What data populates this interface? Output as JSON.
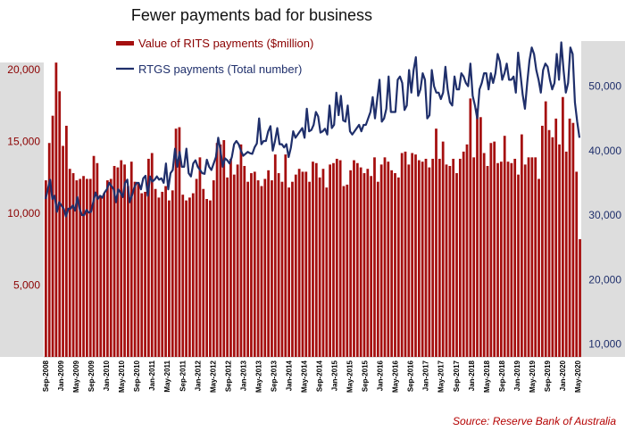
{
  "chart_data": {
    "type": "bar+line",
    "title": "Fewer payments bad for business",
    "source": "Source: Reserve Bank of Australia",
    "colors": {
      "bars": "#a50f0f",
      "line": "#1f2f6b",
      "axis_panel": "#dddddd"
    },
    "legend": {
      "placement": "top-center"
    },
    "grid": false,
    "series": [
      {
        "name": "Value of RITS payments ($million)",
        "type": "bar",
        "axis": "left",
        "ylim": [
          0,
          22000
        ],
        "yticks": [
          "5,000",
          "10,000",
          "15,000",
          "20,000"
        ],
        "ytick_values": [
          5000,
          10000,
          15000,
          20000
        ],
        "values": [
          12300,
          14900,
          16800,
          20500,
          18500,
          14700,
          16100,
          13100,
          12800,
          12300,
          12400,
          12600,
          12400,
          12400,
          14000,
          13500,
          11200,
          11400,
          12300,
          12400,
          13300,
          13200,
          13700,
          13400,
          11900,
          13600,
          12200,
          12100,
          11400,
          11500,
          13800,
          14200,
          11700,
          11100,
          11500,
          11900,
          10900,
          11600,
          15900,
          16000,
          11300,
          10900,
          11100,
          11400,
          12400,
          13900,
          11700,
          11000,
          10900,
          12300,
          14900,
          14800,
          15100,
          12500,
          13800,
          12700,
          13400,
          14800,
          13300,
          12200,
          12800,
          12900,
          12300,
          11900,
          12400,
          13000,
          12300,
          14100,
          12800,
          12200,
          14100,
          11800,
          12200,
          12700,
          13100,
          12900,
          12900,
          12200,
          13600,
          13500,
          12500,
          13100,
          11800,
          13400,
          13500,
          13800,
          13700,
          11900,
          12000,
          13000,
          13700,
          13500,
          13200,
          12800,
          13100,
          12600,
          13900,
          12200,
          13400,
          13900,
          13600,
          13000,
          12800,
          12500,
          14200,
          14300,
          13400,
          14200,
          14100,
          13700,
          13600,
          13800,
          13200,
          13800,
          15900,
          13800,
          15000,
          13400,
          13300,
          13800,
          12800,
          13800,
          14300,
          14800,
          18000,
          13900,
          17300,
          16700,
          14200,
          13300,
          14900,
          15000,
          13500,
          13600,
          15400,
          13600,
          13500,
          13800,
          12700,
          15500,
          13400,
          13900,
          13900,
          13900,
          12400,
          16100,
          17800,
          15800,
          15300,
          16600,
          14800,
          18100,
          14300,
          16600,
          16300,
          12900,
          8200
        ]
      },
      {
        "name": "RTGS payments (Total number)",
        "type": "line",
        "axis": "right",
        "ylim": [
          8000,
          57000
        ],
        "yticks": [
          "10,000",
          "20,000",
          "30,000",
          "40,000",
          "50,000"
        ],
        "ytick_values": [
          10000,
          20000,
          30000,
          40000,
          50000
        ],
        "values": [
          32500,
          34000,
          35500,
          32500,
          33000,
          30500,
          32000,
          31500,
          31000,
          29800,
          31000,
          31000,
          31500,
          30700,
          32800,
          31000,
          30000,
          30000,
          30800,
          30400,
          30500,
          32000,
          33500,
          32500,
          33000,
          32700,
          33500,
          34000,
          35000,
          34500,
          34000,
          32000,
          34000,
          33500,
          32800,
          35000,
          35500,
          32000,
          33000,
          34200,
          35000,
          35000,
          34000,
          35700,
          36100,
          33000,
          36000,
          35200,
          35500,
          36000,
          35500,
          35700,
          35000,
          38000,
          34000,
          36500,
          37000,
          40300,
          37500,
          39800,
          37500,
          37500,
          40300,
          36500,
          36000,
          38000,
          38500,
          37500,
          37000,
          36500,
          36400,
          38600,
          37500,
          37000,
          38000,
          39000,
          42000,
          40000,
          37500,
          38800,
          38500,
          38000,
          39000,
          41000,
          41500,
          41000,
          40000,
          39200,
          39500,
          39800,
          39600,
          39500,
          40500,
          41100,
          45000,
          41000,
          41500,
          41500,
          43000,
          43800,
          40000,
          41500,
          43500,
          41000,
          41000,
          40500,
          41000,
          39000,
          40500,
          43000,
          42000,
          42500,
          43000,
          43500,
          42000,
          46500,
          43000,
          43200,
          44000,
          46000,
          45300,
          42800,
          43000,
          43400,
          42500,
          47000,
          43500,
          44000,
          49000,
          45500,
          48500,
          44700,
          44500,
          47000,
          43000,
          42500,
          43000,
          43500,
          44000,
          43000,
          44000,
          44000,
          45000,
          46000,
          48300,
          45000,
          48000,
          51000,
          44500,
          45000,
          46500,
          51500,
          46000,
          46000,
          46000,
          51000,
          51500,
          50500,
          46300,
          47000,
          52500,
          49000,
          52500,
          54500,
          48500,
          49500,
          52000,
          51000,
          45000,
          45500,
          52500,
          50000,
          49000,
          49000,
          48000,
          49000,
          53000,
          49500,
          47500,
          47000,
          51500,
          49500,
          49500,
          52000,
          51500,
          50500,
          50000,
          53500,
          48500,
          47000,
          45000,
          49500,
          50500,
          52000,
          52000,
          49500,
          52000,
          50500,
          52000,
          55000,
          53800,
          51000,
          52000,
          53500,
          51000,
          51000,
          51500,
          49000,
          55200,
          52000,
          48700,
          46500,
          50500,
          54000,
          56000,
          55000,
          52500,
          51000,
          49000,
          52500,
          53500,
          53000,
          51000,
          49500,
          50500,
          55000,
          51000,
          56800,
          52500,
          49000,
          50500,
          56000,
          55000,
          47500,
          44500,
          42000
        ]
      }
    ],
    "x": {
      "tick_labels": [
        "Sep-2008",
        "Jan-2009",
        "May-2009",
        "Sep-2009",
        "Jan-2010",
        "May-2010",
        "Sep-2010",
        "Jan-2011",
        "May-2011",
        "Sep-2011",
        "Jan-2012",
        "May-2012",
        "Sep-2012",
        "Jan-2013",
        "May-2013",
        "Sep-2013",
        "Jan-2014",
        "May-2014",
        "Sep-2014",
        "Jan-2015",
        "May-2015",
        "Sep-2015",
        "Jan-2016",
        "May-2016",
        "Sep-2016",
        "Jan-2017",
        "May-2017",
        "Sep-2017",
        "Jan-2018",
        "May-2018",
        "Sep-2018",
        "Jan-2019",
        "May-2019",
        "Sep-2019",
        "Jan-2020",
        "May-2020"
      ]
    }
  }
}
